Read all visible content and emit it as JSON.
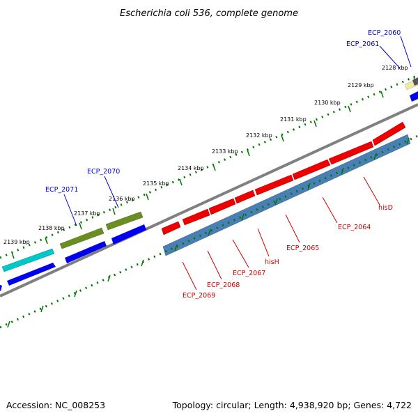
{
  "title": "Escherichia coli 536, complete genome",
  "footer": {
    "accession": "Accession: NC_008253",
    "summary": "Topology: circular; Length: 4,938,920 bp; Genes: 4,722"
  },
  "ticks": [
    "2128 kbp",
    "2129 kbp",
    "2130 kbp",
    "2131 kbp",
    "2132 kbp",
    "2133 kbp",
    "2134 kbp",
    "2135 kbp",
    "2136 kbp",
    "2137 kbp",
    "2138 kbp",
    "2139 kbp"
  ],
  "gene_labels_blue": [
    "ECP_2060",
    "ECP_2061",
    "ECP_2070",
    "ECP_2071"
  ],
  "gene_labels_red": [
    "hisD",
    "ECP_2064",
    "ECP_2065",
    "hisH",
    "ECP_2067",
    "ECP_2068",
    "ECP_2069"
  ],
  "colors": {
    "backbone": "#808080",
    "tick_green": "#007700",
    "forward_cds": "#ee0000",
    "forward_rna": "#4a7fb5",
    "reverse_blue": "#0000ee",
    "cyan": "#00c8c8",
    "olive": "#6b8e23",
    "pale_yellow": "#eee8aa"
  }
}
